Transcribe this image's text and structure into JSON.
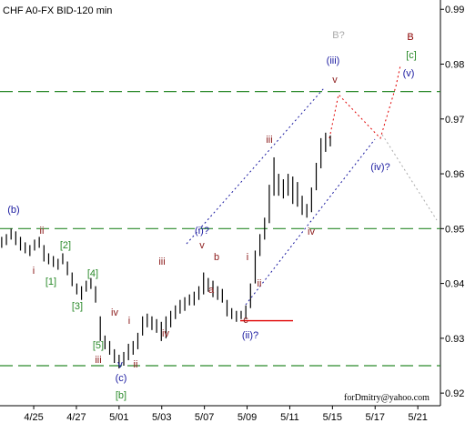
{
  "chart_data": {
    "type": "ohlc",
    "title": "CHF A0-FX BID-120 min",
    "color": "#000000",
    "xlim": [
      0.21,
      10.53
    ],
    "xticks": [
      {
        "value": 1,
        "label": "4/25"
      },
      {
        "value": 2,
        "label": "4/27"
      },
      {
        "value": 3,
        "label": "5/01"
      },
      {
        "value": 4,
        "label": "5/03"
      },
      {
        "value": 5,
        "label": "5/07"
      },
      {
        "value": 6,
        "label": "5/09"
      },
      {
        "value": 7,
        "label": "5/11"
      },
      {
        "value": 8,
        "label": "5/15"
      },
      {
        "value": 9,
        "label": "5/17"
      },
      {
        "value": 10,
        "label": "5/21"
      }
    ],
    "ylim": [
      0.9177,
      0.9917
    ],
    "yticks": [
      0.92,
      0.93,
      0.94,
      0.95,
      0.96,
      0.97,
      0.98,
      0.99
    ],
    "x": [
      0.25,
      0.36,
      0.47,
      0.58,
      0.69,
      0.8,
      0.91,
      1.02,
      1.13,
      1.24,
      1.35,
      1.46,
      1.57,
      1.68,
      1.79,
      1.9,
      2.01,
      2.12,
      2.23,
      2.34,
      2.45,
      2.56,
      2.67,
      2.78,
      2.89,
      3.0,
      3.11,
      3.22,
      3.33,
      3.44,
      3.55,
      3.66,
      3.77,
      3.88,
      3.99,
      4.1,
      4.21,
      4.32,
      4.43,
      4.54,
      4.65,
      4.76,
      4.87,
      4.98,
      5.09,
      5.2,
      5.31,
      5.42,
      5.53,
      5.64,
      5.75,
      5.86,
      5.97,
      6.08,
      6.19,
      6.3,
      6.41,
      6.52,
      6.63,
      6.74,
      6.85,
      6.96,
      7.07,
      7.18,
      7.29,
      7.4,
      7.51,
      7.62,
      7.73,
      7.84,
      7.95
    ],
    "high": [
      0.9485,
      0.949,
      0.95,
      0.9495,
      0.9485,
      0.9475,
      0.947,
      0.948,
      0.9485,
      0.947,
      0.9455,
      0.945,
      0.9445,
      0.9455,
      0.944,
      0.942,
      0.94,
      0.9395,
      0.9405,
      0.941,
      0.9395,
      0.934,
      0.9305,
      0.9295,
      0.928,
      0.927,
      0.9275,
      0.929,
      0.9295,
      0.931,
      0.934,
      0.9345,
      0.934,
      0.9335,
      0.933,
      0.934,
      0.935,
      0.936,
      0.937,
      0.9375,
      0.938,
      0.9385,
      0.9395,
      0.942,
      0.941,
      0.9405,
      0.9395,
      0.939,
      0.937,
      0.9355,
      0.935,
      0.935,
      0.936,
      0.94,
      0.946,
      0.949,
      0.952,
      0.958,
      0.963,
      0.96,
      0.959,
      0.96,
      0.9595,
      0.9585,
      0.956,
      0.9545,
      0.9575,
      0.962,
      0.9665,
      0.9675,
      0.967
    ],
    "low": [
      0.9465,
      0.947,
      0.948,
      0.947,
      0.946,
      0.9455,
      0.945,
      0.946,
      0.9465,
      0.944,
      0.9435,
      0.943,
      0.9425,
      0.9435,
      0.9415,
      0.9395,
      0.938,
      0.937,
      0.9385,
      0.939,
      0.9365,
      0.9295,
      0.928,
      0.927,
      0.9255,
      0.9245,
      0.925,
      0.926,
      0.927,
      0.928,
      0.9305,
      0.932,
      0.9315,
      0.931,
      0.9295,
      0.93,
      0.932,
      0.9335,
      0.9345,
      0.935,
      0.936,
      0.936,
      0.937,
      0.938,
      0.9385,
      0.9375,
      0.937,
      0.9365,
      0.934,
      0.9335,
      0.933,
      0.9335,
      0.9335,
      0.9355,
      0.94,
      0.945,
      0.948,
      0.951,
      0.956,
      0.956,
      0.9555,
      0.956,
      0.9545,
      0.954,
      0.9525,
      0.952,
      0.953,
      0.957,
      0.961,
      0.964,
      0.965
    ],
    "hlines": [
      0.975,
      0.95,
      0.925
    ],
    "level_line": 0.9332,
    "annotations": [
      "(b)",
      "ii",
      "i",
      "[2]",
      "[1]",
      "[4]",
      "[3]",
      "iv",
      "i",
      "[5]",
      "iii",
      "v",
      "ii",
      "(c)",
      "[b]",
      "iii",
      "iv",
      "(i)?",
      "v",
      "b",
      "a",
      "i",
      "ii",
      "c",
      "(ii)?",
      "iii",
      "iv",
      "(iii)",
      "v",
      "B?",
      "B",
      "[c]",
      "(v)",
      "(iv)?"
    ],
    "credit": "forDmitry@yahoo.com"
  }
}
